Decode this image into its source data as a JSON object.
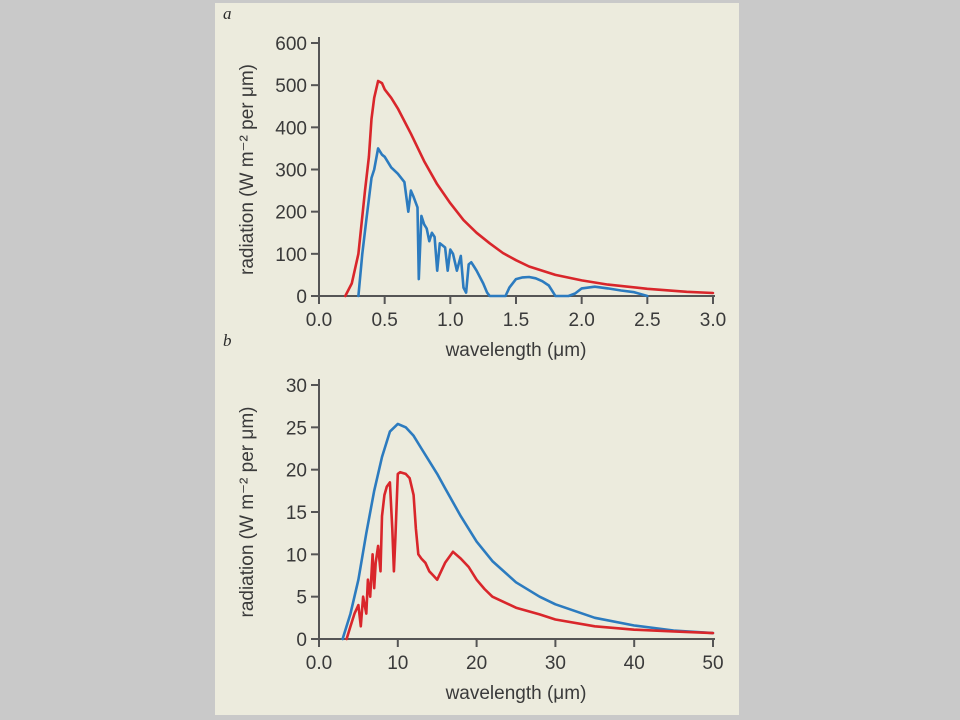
{
  "figure": {
    "background": "#ecebdd",
    "page_background": "#c9c9c9"
  },
  "chart_data": [
    {
      "type": "line",
      "panel_label": "a",
      "xlabel": "wavelength (μm)",
      "ylabel": "radiation (W m⁻² per μm)",
      "xlim": [
        0,
        3.0
      ],
      "ylim": [
        0,
        600
      ],
      "xticks": [
        0.0,
        0.5,
        1.0,
        1.5,
        2.0,
        2.5,
        3.0
      ],
      "xtick_labels": [
        "0.0",
        "0.5",
        "1.0",
        "1.5",
        "2.0",
        "2.5",
        "3.0"
      ],
      "yticks": [
        0,
        100,
        200,
        300,
        400,
        500,
        600
      ],
      "ytick_labels": [
        "0",
        "100",
        "200",
        "300",
        "400",
        "500",
        "600"
      ],
      "series": [
        {
          "color": "#d9262b",
          "x": [
            0.2,
            0.25,
            0.3,
            0.35,
            0.38,
            0.4,
            0.42,
            0.45,
            0.48,
            0.5,
            0.55,
            0.6,
            0.7,
            0.8,
            0.9,
            1.0,
            1.1,
            1.2,
            1.3,
            1.4,
            1.5,
            1.6,
            1.8,
            2.0,
            2.2,
            2.5,
            2.8,
            3.0
          ],
          "y": [
            0,
            30,
            100,
            250,
            330,
            420,
            470,
            510,
            505,
            490,
            470,
            445,
            385,
            320,
            265,
            220,
            180,
            150,
            125,
            102,
            85,
            70,
            50,
            37,
            27,
            17,
            10,
            7
          ]
        },
        {
          "color": "#2c7bbf",
          "x": [
            0.3,
            0.33,
            0.36,
            0.38,
            0.4,
            0.42,
            0.45,
            0.48,
            0.5,
            0.55,
            0.6,
            0.65,
            0.68,
            0.7,
            0.72,
            0.75,
            0.76,
            0.78,
            0.8,
            0.82,
            0.84,
            0.86,
            0.88,
            0.9,
            0.92,
            0.94,
            0.96,
            0.98,
            1.0,
            1.02,
            1.05,
            1.08,
            1.1,
            1.12,
            1.14,
            1.16,
            1.18,
            1.2,
            1.25,
            1.28,
            1.3,
            1.32,
            1.34,
            1.35,
            1.4,
            1.42,
            1.45,
            1.5,
            1.55,
            1.6,
            1.65,
            1.7,
            1.75,
            1.78,
            1.8,
            1.9,
            1.95,
            2.0,
            2.1,
            2.2,
            2.3,
            2.4,
            2.5
          ],
          "y": [
            0,
            100,
            180,
            230,
            280,
            300,
            350,
            335,
            330,
            305,
            290,
            270,
            200,
            250,
            235,
            210,
            40,
            190,
            170,
            160,
            130,
            150,
            140,
            60,
            125,
            120,
            115,
            60,
            110,
            100,
            60,
            95,
            20,
            8,
            75,
            80,
            70,
            60,
            30,
            8,
            0,
            0,
            0,
            0,
            0,
            0,
            20,
            40,
            44,
            45,
            42,
            35,
            25,
            10,
            0,
            0,
            6,
            18,
            22,
            18,
            13,
            9,
            0
          ]
        }
      ]
    },
    {
      "type": "line",
      "panel_label": "b",
      "xlabel": "wavelength (μm)",
      "ylabel": "radiation (W m⁻² per μm)",
      "xlim": [
        0,
        50
      ],
      "ylim": [
        0,
        30
      ],
      "xticks": [
        0,
        10,
        20,
        30,
        40,
        50
      ],
      "xtick_labels": [
        "0.0",
        "10",
        "20",
        "30",
        "40",
        "50"
      ],
      "yticks": [
        0,
        5,
        10,
        15,
        20,
        25,
        30
      ],
      "ytick_labels": [
        "0",
        "5",
        "10",
        "15",
        "20",
        "25",
        "30"
      ],
      "series": [
        {
          "color": "#2c7bbf",
          "x": [
            3,
            4,
            5,
            6,
            7,
            8,
            9,
            10,
            11,
            12,
            13,
            14,
            15,
            16,
            18,
            20,
            22,
            25,
            28,
            30,
            35,
            40,
            45,
            50
          ],
          "y": [
            0,
            3,
            7,
            12.5,
            17.5,
            21.5,
            24.5,
            25.4,
            25,
            24,
            22.5,
            21,
            19.5,
            17.8,
            14.5,
            11.5,
            9.2,
            6.7,
            5,
            4.1,
            2.5,
            1.6,
            1,
            0.7
          ]
        },
        {
          "color": "#d9262b",
          "x": [
            3.5,
            4,
            4.5,
            5,
            5.3,
            5.6,
            6,
            6.2,
            6.5,
            6.8,
            7,
            7.2,
            7.5,
            7.8,
            8,
            8.3,
            8.6,
            9,
            9.3,
            9.5,
            9.7,
            10,
            10.3,
            11,
            11.5,
            12,
            12.3,
            12.6,
            13,
            13.5,
            14,
            14.5,
            15,
            15.5,
            16,
            17,
            18,
            19,
            20,
            21,
            22,
            25,
            28,
            30,
            35,
            40,
            45,
            50
          ],
          "y": [
            0,
            1.5,
            3,
            4,
            1.5,
            5,
            3,
            7,
            5,
            10,
            6,
            9,
            11,
            8,
            14.5,
            17,
            18,
            18.5,
            13,
            8,
            12,
            19.5,
            19.7,
            19.5,
            19,
            17,
            13,
            10,
            9.5,
            9,
            8,
            7.5,
            7,
            8,
            9,
            10.3,
            9.5,
            8.5,
            7,
            5.9,
            5,
            3.7,
            2.9,
            2.3,
            1.5,
            1.1,
            0.9,
            0.7
          ]
        }
      ]
    }
  ]
}
